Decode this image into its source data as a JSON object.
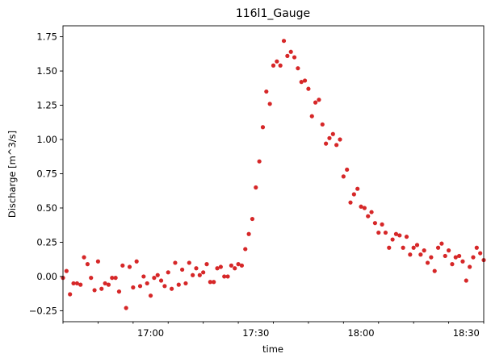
{
  "chart_data": {
    "type": "scatter",
    "title": "116l1_Gauge",
    "xlabel": "time",
    "ylabel": "Discharge [m^3/s]",
    "xlim": [
      "16:35",
      "18:35"
    ],
    "ylim": [
      -0.33,
      1.83
    ],
    "x_ticks": [
      "17:00",
      "17:30",
      "18:00",
      "18:30"
    ],
    "y_ticks": [
      -0.25,
      0.0,
      0.25,
      0.5,
      0.75,
      1.0,
      1.25,
      1.5,
      1.75
    ],
    "y_tick_labels": [
      "−0.25",
      "0.00",
      "0.25",
      "0.50",
      "0.75",
      "1.00",
      "1.25",
      "1.50",
      "1.75"
    ],
    "grid": false,
    "marker_color": "#d62728",
    "x": [
      "16:35",
      "16:36",
      "16:37",
      "16:38",
      "16:39",
      "16:40",
      "16:41",
      "16:42",
      "16:43",
      "16:44",
      "16:45",
      "16:46",
      "16:47",
      "16:48",
      "16:49",
      "16:50",
      "16:51",
      "16:52",
      "16:53",
      "16:54",
      "16:55",
      "16:56",
      "16:57",
      "16:58",
      "16:59",
      "17:00",
      "17:01",
      "17:02",
      "17:03",
      "17:04",
      "17:05",
      "17:06",
      "17:07",
      "17:08",
      "17:09",
      "17:10",
      "17:11",
      "17:12",
      "17:13",
      "17:14",
      "17:15",
      "17:16",
      "17:17",
      "17:18",
      "17:19",
      "17:20",
      "17:21",
      "17:22",
      "17:23",
      "17:24",
      "17:25",
      "17:26",
      "17:27",
      "17:28",
      "17:29",
      "17:30",
      "17:31",
      "17:32",
      "17:33",
      "17:34",
      "17:35",
      "17:36",
      "17:37",
      "17:38",
      "17:39",
      "17:40",
      "17:41",
      "17:42",
      "17:43",
      "17:44",
      "17:45",
      "17:46",
      "17:47",
      "17:48",
      "17:49",
      "17:50",
      "17:51",
      "17:52",
      "17:53",
      "17:54",
      "17:55",
      "17:56",
      "17:57",
      "17:58",
      "17:59",
      "18:00",
      "18:01",
      "18:02",
      "18:03",
      "18:04",
      "18:05",
      "18:06",
      "18:07",
      "18:08",
      "18:09",
      "18:10",
      "18:11",
      "18:12",
      "18:13",
      "18:14",
      "18:15",
      "18:16",
      "18:17",
      "18:18",
      "18:19",
      "18:20",
      "18:21",
      "18:22",
      "18:23",
      "18:24",
      "18:25",
      "18:26",
      "18:27",
      "18:28",
      "18:29",
      "18:30",
      "18:31",
      "18:32",
      "18:33",
      "18:34",
      "18:35"
    ],
    "y": [
      -0.01,
      0.04,
      -0.13,
      -0.05,
      -0.05,
      -0.06,
      0.14,
      0.09,
      -0.01,
      -0.1,
      0.11,
      -0.09,
      -0.05,
      -0.06,
      -0.01,
      -0.01,
      -0.11,
      0.08,
      -0.23,
      0.07,
      -0.08,
      0.11,
      -0.07,
      0.0,
      -0.05,
      -0.14,
      -0.01,
      0.01,
      -0.03,
      -0.07,
      0.03,
      -0.09,
      0.1,
      -0.06,
      0.05,
      -0.05,
      0.1,
      0.01,
      0.06,
      0.01,
      0.03,
      0.09,
      -0.04,
      -0.04,
      0.06,
      0.07,
      0.0,
      0.0,
      0.08,
      0.06,
      0.09,
      0.08,
      0.2,
      0.31,
      0.42,
      0.65,
      0.84,
      1.09,
      1.35,
      1.26,
      1.54,
      1.57,
      1.54,
      1.72,
      1.61,
      1.64,
      1.6,
      1.52,
      1.42,
      1.43,
      1.37,
      1.17,
      1.27,
      1.29,
      1.11,
      0.97,
      1.01,
      1.04,
      0.96,
      1.0,
      0.73,
      0.78,
      0.54,
      0.6,
      0.64,
      0.51,
      0.5,
      0.44,
      0.47,
      0.39,
      0.32,
      0.38,
      0.32,
      0.21,
      0.27,
      0.31,
      0.3,
      0.21,
      0.29,
      0.16,
      0.21,
      0.23,
      0.16,
      0.19,
      0.1,
      0.14,
      0.04,
      0.21,
      0.24,
      0.15,
      0.19,
      0.09,
      0.14,
      0.15,
      0.11,
      -0.03,
      0.07,
      0.14,
      0.21,
      0.17,
      0.12
    ]
  }
}
